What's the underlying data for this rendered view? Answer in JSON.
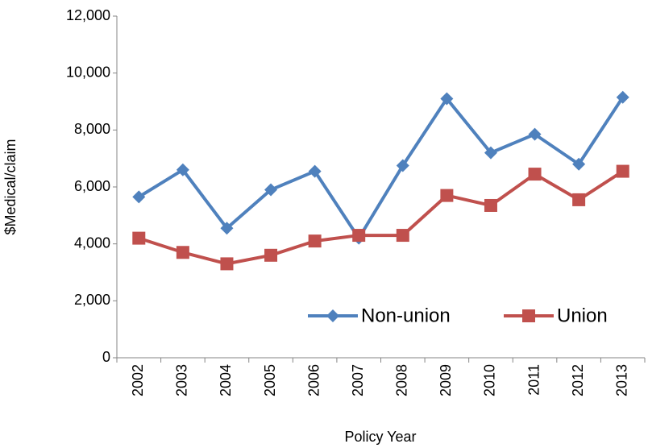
{
  "chart_data": {
    "type": "line",
    "categories": [
      "2002",
      "2003",
      "2004",
      "2005",
      "2006",
      "2007",
      "2008",
      "2009",
      "2010",
      "2011",
      "2012",
      "2013"
    ],
    "series": [
      {
        "name": "Non-union",
        "color": "#4f81bd",
        "marker": "diamond",
        "values": [
          5650,
          6600,
          4550,
          5900,
          6550,
          4200,
          6750,
          9100,
          7200,
          7850,
          6800,
          9150
        ]
      },
      {
        "name": "Union",
        "color": "#c0504d",
        "marker": "square",
        "values": [
          4200,
          3700,
          3300,
          3600,
          4100,
          4300,
          4300,
          5700,
          5350,
          6450,
          5550,
          6550
        ]
      }
    ],
    "ylim": [
      0,
      12000
    ],
    "yticks": [
      0,
      {
        "value": 2000,
        "label": "2,000"
      },
      {
        "value": 4000,
        "label": "4,000"
      },
      {
        "value": 6000,
        "label": "6,000"
      },
      {
        "value": 8000,
        "label": "8,000"
      },
      {
        "value": 10000,
        "label": "10,000"
      },
      {
        "value": 12000,
        "label": "12,000"
      }
    ],
    "y_label": "$Medical/claim",
    "x_label": "Policy Year",
    "grid": false,
    "legend": "lower right"
  }
}
